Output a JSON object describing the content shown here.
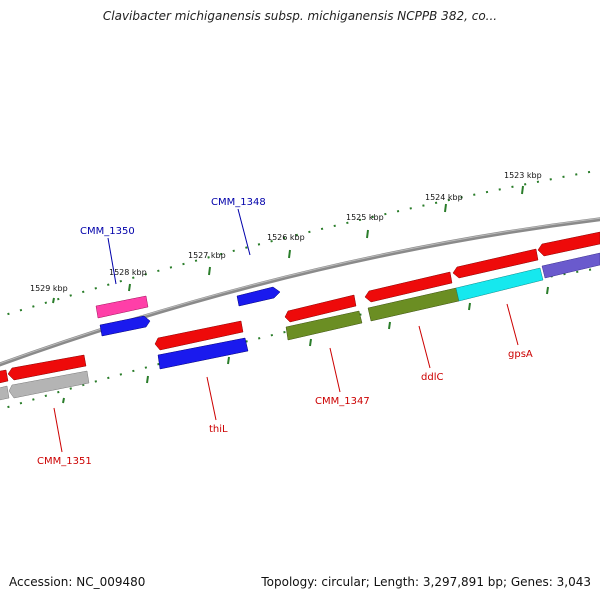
{
  "title": "Clavibacter michiganensis subsp. michiganensis NCPPB 382, co...",
  "footer": {
    "accession": "Accession: NC_009480",
    "summary": "Topology: circular; Length: 3,297,891 bp; Genes: 3,043"
  },
  "colors": {
    "backbone": "#8a8a8a",
    "ticks": "#2a7d2a",
    "label_red": "#cc0000",
    "label_blue": "#0000aa"
  },
  "scale_labels": [
    "1529 kbp",
    "1528 kbp",
    "1527 kbp",
    "1526 kbp",
    "1525 kbp",
    "1524 kbp",
    "1523 kbp"
  ],
  "gene_labels": [
    {
      "text": "CMM_1350",
      "color": "#0000aa"
    },
    {
      "text": "CMM_1348",
      "color": "#0000aa"
    },
    {
      "text": "CMM_1351",
      "color": "#cc0000"
    },
    {
      "text": "thiL",
      "color": "#cc0000"
    },
    {
      "text": "CMM_1347",
      "color": "#cc0000"
    },
    {
      "text": "ddlC",
      "color": "#cc0000"
    },
    {
      "text": "gpsA",
      "color": "#cc0000"
    }
  ],
  "features": [
    {
      "track": "outer",
      "color": "#ff3fa8"
    },
    {
      "track": "outer",
      "color": "#1a1aee"
    },
    {
      "track": "outer",
      "color": "#1a1aee"
    },
    {
      "track": "cds-fwd",
      "color": "#ee0a0a"
    },
    {
      "track": "cds-fwd",
      "color": "#ee0a0a"
    },
    {
      "track": "cds-fwd",
      "color": "#ee0a0a"
    },
    {
      "track": "cds-fwd",
      "color": "#ee0a0a"
    },
    {
      "track": "cds-fwd",
      "color": "#ee0a0a"
    },
    {
      "track": "cds-fwd",
      "color": "#ee0a0a"
    },
    {
      "track": "cds-fwd",
      "color": "#ee0a0a"
    },
    {
      "track": "cog",
      "color": "#b4b4b4"
    },
    {
      "track": "cog",
      "color": "#b4b4b4"
    },
    {
      "track": "cog",
      "color": "#1a1aee"
    },
    {
      "track": "cog",
      "color": "#6b8e23"
    },
    {
      "track": "cog",
      "color": "#6b8e23"
    },
    {
      "track": "cog",
      "color": "#16e8ee"
    },
    {
      "track": "cog",
      "color": "#6a5acd"
    }
  ]
}
